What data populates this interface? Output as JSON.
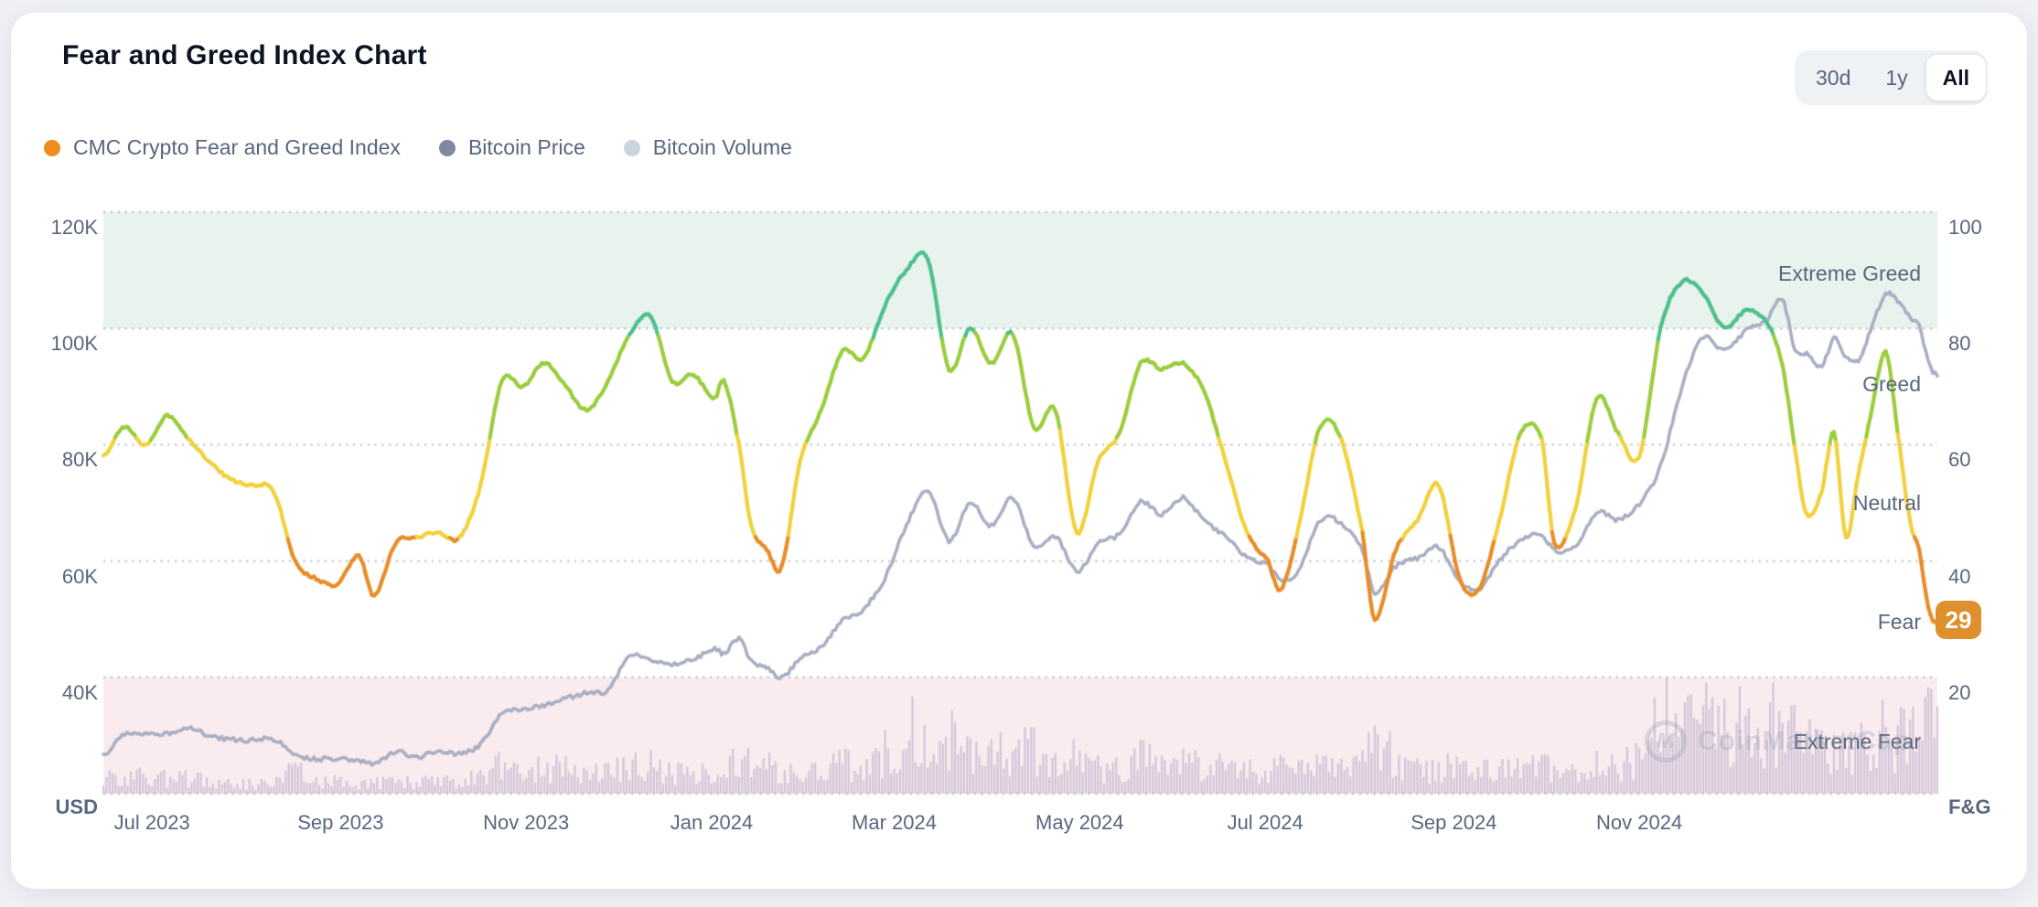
{
  "header": {
    "title": "Fear and Greed Index Chart"
  },
  "range_selector": {
    "options": [
      {
        "label": "30d",
        "active": false
      },
      {
        "label": "1y",
        "active": false
      },
      {
        "label": "All",
        "active": true
      }
    ]
  },
  "legend": [
    {
      "label": "CMC Crypto Fear and Greed Index",
      "color": "#ee8d1f"
    },
    {
      "label": "Bitcoin Price",
      "color": "#7f8aa0"
    },
    {
      "label": "Bitcoin Volume",
      "color": "#ccd3e0"
    }
  ],
  "chart_data": {
    "type": "line",
    "title": "Fear and Greed Index Chart",
    "grid": "horizontal-dotted",
    "left_axis": {
      "title": "USD",
      "range": [
        20000,
        120000
      ],
      "tick_values": [
        120000,
        100000,
        80000,
        60000,
        40000
      ],
      "tick_labels": [
        "120K",
        "100K",
        "80K",
        "60K",
        "40K"
      ]
    },
    "right_axis": {
      "title": "F&G",
      "range": [
        0,
        100
      ],
      "tick_values": [
        100,
        80,
        60,
        40,
        20
      ],
      "grid_values": [
        100,
        80,
        60,
        40,
        20,
        0
      ]
    },
    "x_axis": {
      "tick_labels": [
        "Jul 2023",
        "Sep 2023",
        "Nov 2023",
        "Jan 2024",
        "Mar 2024",
        "May 2024",
        "Jul 2024",
        "Sep 2024",
        "Nov 2024"
      ],
      "tick_dates": [
        "2023-07-01",
        "2023-09-01",
        "2023-11-01",
        "2024-01-01",
        "2024-03-01",
        "2024-05-01",
        "2024-07-01",
        "2024-09-01",
        "2024-11-01"
      ]
    },
    "zones": [
      {
        "label": "Extreme Greed",
        "fg_range": [
          80,
          100
        ],
        "fill": "#e8f3ed"
      },
      {
        "label": "Extreme Fear",
        "fg_range": [
          0,
          20
        ],
        "fill": "#f9ebee"
      }
    ],
    "band_labels": [
      {
        "text": "Extreme Greed",
        "fg": 89.5
      },
      {
        "text": "Greed",
        "fg": 70.5
      },
      {
        "text": "Neutral",
        "fg": 50.0
      },
      {
        "text": "Fear",
        "fg": 29.5
      },
      {
        "text": "Extreme Fear",
        "fg": 9.0
      }
    ],
    "fgi_color_scale": [
      {
        "min": 79,
        "color": "#4ec08c",
        "label": "extreme-greed"
      },
      {
        "min": 61,
        "color": "#9bcd3e",
        "label": "greed"
      },
      {
        "min": 44,
        "color": "#f1d13c",
        "label": "neutral"
      },
      {
        "min": 0,
        "color": "#e88d2a",
        "label": "fear"
      }
    ],
    "series": [
      {
        "name": "CMC Crypto Fear and Greed Index",
        "axis": "right",
        "style": "multicolor-line"
      },
      {
        "name": "Bitcoin Price",
        "axis": "left",
        "style": "line",
        "color": "#a9afc3"
      },
      {
        "name": "Bitcoin Volume",
        "axis": "left",
        "style": "bars",
        "color": "#cbc1d8",
        "unit": "billion USD"
      }
    ],
    "current": {
      "value": 29,
      "classification": "Fear",
      "badge_color": "#de8f2e"
    },
    "watermark": {
      "icon": "M",
      "text": "CoinMarketCap"
    },
    "columns": [
      "date",
      "fear_greed_index",
      "btc_price_usd",
      "btc_volume_busd"
    ],
    "points": [
      [
        "2023-06-15",
        58,
        26500,
        13
      ],
      [
        "2023-06-22",
        63,
        30100,
        19
      ],
      [
        "2023-06-29",
        60,
        30400,
        12
      ],
      [
        "2023-07-06",
        65,
        30300,
        13
      ],
      [
        "2023-07-13",
        61,
        31300,
        14
      ],
      [
        "2023-07-20",
        57,
        29900,
        10
      ],
      [
        "2023-07-27",
        54,
        29300,
        9
      ],
      [
        "2023-08-03",
        53,
        29200,
        9
      ],
      [
        "2023-08-10",
        52,
        29400,
        8
      ],
      [
        "2023-08-17",
        40,
        26600,
        21
      ],
      [
        "2023-08-24",
        37,
        26000,
        11
      ],
      [
        "2023-08-31",
        36,
        25900,
        11
      ],
      [
        "2023-09-07",
        41,
        25800,
        9
      ],
      [
        "2023-09-12",
        34,
        25100,
        10
      ],
      [
        "2023-09-19",
        43,
        27200,
        11
      ],
      [
        "2023-09-26",
        44,
        26200,
        9
      ],
      [
        "2023-10-03",
        45,
        27400,
        11
      ],
      [
        "2023-10-10",
        44,
        26900,
        9
      ],
      [
        "2023-10-17",
        53,
        28500,
        15
      ],
      [
        "2023-10-24",
        71,
        33900,
        28
      ],
      [
        "2023-10-31",
        70,
        34500,
        19
      ],
      [
        "2023-11-07",
        74,
        35100,
        21
      ],
      [
        "2023-11-14",
        70,
        36300,
        23
      ],
      [
        "2023-11-21",
        66,
        37400,
        19
      ],
      [
        "2023-11-28",
        71,
        37800,
        17
      ],
      [
        "2023-12-05",
        79,
        43800,
        28
      ],
      [
        "2023-12-12",
        82,
        42900,
        25
      ],
      [
        "2023-12-19",
        71,
        42300,
        19
      ],
      [
        "2023-12-26",
        72,
        43000,
        15
      ],
      [
        "2024-01-02",
        68,
        45000,
        21
      ],
      [
        "2024-01-05",
        71,
        44100,
        24
      ],
      [
        "2024-01-10",
        60,
        46600,
        30
      ],
      [
        "2024-01-14",
        46,
        42800,
        25
      ],
      [
        "2024-01-19",
        42,
        41600,
        23
      ],
      [
        "2024-01-24",
        39,
        40000,
        22
      ],
      [
        "2024-01-30",
        57,
        43100,
        17
      ],
      [
        "2024-02-06",
        66,
        45300,
        17
      ],
      [
        "2024-02-13",
        76,
        49700,
        27
      ],
      [
        "2024-02-20",
        75,
        51800,
        23
      ],
      [
        "2024-02-27",
        84,
        57100,
        39
      ],
      [
        "2024-03-05",
        90,
        66100,
        58
      ],
      [
        "2024-03-12",
        92,
        72100,
        56
      ],
      [
        "2024-03-19",
        73,
        63500,
        50
      ],
      [
        "2024-03-26",
        80,
        69900,
        38
      ],
      [
        "2024-04-02",
        74,
        66100,
        35
      ],
      [
        "2024-04-09",
        79,
        70800,
        33
      ],
      [
        "2024-04-16",
        63,
        62700,
        40
      ],
      [
        "2024-04-23",
        66,
        64300,
        25
      ],
      [
        "2024-04-30",
        45,
        58300,
        31
      ],
      [
        "2024-05-07",
        57,
        62900,
        23
      ],
      [
        "2024-05-14",
        62,
        64700,
        21
      ],
      [
        "2024-05-21",
        74,
        70200,
        31
      ],
      [
        "2024-05-28",
        73,
        68000,
        23
      ],
      [
        "2024-06-04",
        74,
        70900,
        25
      ],
      [
        "2024-06-11",
        69,
        66900,
        27
      ],
      [
        "2024-06-18",
        57,
        64100,
        23
      ],
      [
        "2024-06-25",
        45,
        60700,
        21
      ],
      [
        "2024-07-02",
        40,
        59400,
        19
      ],
      [
        "2024-07-06",
        35,
        56700,
        23
      ],
      [
        "2024-07-12",
        46,
        58400,
        19
      ],
      [
        "2024-07-19",
        63,
        66900,
        23
      ],
      [
        "2024-07-26",
        61,
        66500,
        19
      ],
      [
        "2024-08-02",
        45,
        61800,
        27
      ],
      [
        "2024-08-06",
        30,
        54500,
        55
      ],
      [
        "2024-08-13",
        42,
        59100,
        25
      ],
      [
        "2024-08-20",
        47,
        60500,
        19
      ],
      [
        "2024-08-27",
        53,
        62300,
        21
      ],
      [
        "2024-09-03",
        37,
        56600,
        23
      ],
      [
        "2024-09-09",
        35,
        55100,
        21
      ],
      [
        "2024-09-16",
        47,
        60200,
        21
      ],
      [
        "2024-09-23",
        62,
        63500,
        21
      ],
      [
        "2024-09-30",
        61,
        64500,
        23
      ],
      [
        "2024-10-04",
        43,
        61800,
        19
      ],
      [
        "2024-10-11",
        49,
        62500,
        17
      ],
      [
        "2024-10-18",
        68,
        68400,
        25
      ],
      [
        "2024-10-25",
        62,
        67100,
        23
      ],
      [
        "2024-11-01",
        58,
        69800,
        29
      ],
      [
        "2024-11-08",
        80,
        76300,
        61
      ],
      [
        "2024-11-15",
        88,
        89900,
        83
      ],
      [
        "2024-11-22",
        86,
        98500,
        89
      ],
      [
        "2024-11-29",
        80,
        96100,
        55
      ],
      [
        "2024-12-06",
        83,
        99500,
        69
      ],
      [
        "2024-12-13",
        81,
        101400,
        57
      ],
      [
        "2024-12-18",
        74,
        105200,
        65
      ],
      [
        "2024-12-22",
        60,
        96700,
        52
      ],
      [
        "2024-12-26",
        48,
        95600,
        44
      ],
      [
        "2024-12-31",
        52,
        93600,
        39
      ],
      [
        "2025-01-04",
        62,
        98200,
        41
      ],
      [
        "2025-01-08",
        44,
        95000,
        47
      ],
      [
        "2025-01-12",
        55,
        94500,
        39
      ],
      [
        "2025-01-16",
        65,
        99800,
        43
      ],
      [
        "2025-01-21",
        76,
        105900,
        59
      ],
      [
        "2025-01-25",
        62,
        104800,
        45
      ],
      [
        "2025-01-29",
        47,
        101900,
        51
      ],
      [
        "2025-02-01",
        42,
        100600,
        58
      ],
      [
        "2025-02-04",
        32,
        94300,
        104
      ],
      [
        "2025-02-07",
        29,
        91800,
        57
      ]
    ]
  }
}
